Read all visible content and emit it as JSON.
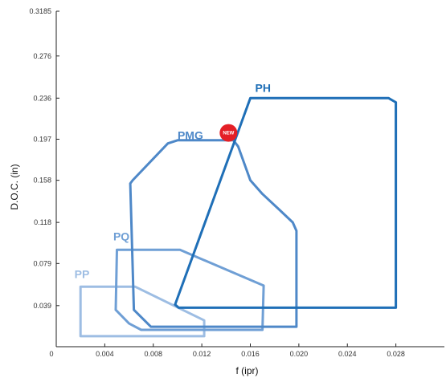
{
  "chart_data": {
    "type": "area",
    "xlabel": "f (ipr)",
    "ylabel": "D.O.C. (in)",
    "xlim": [
      0,
      0.032
    ],
    "ylim": [
      0,
      0.3185
    ],
    "x_ticks": [
      {
        "value": 0,
        "label": "0"
      },
      {
        "value": 0.004,
        "label": "0.004"
      },
      {
        "value": 0.008,
        "label": "0.008"
      },
      {
        "value": 0.012,
        "label": "0.012"
      },
      {
        "value": 0.016,
        "label": "0.016"
      },
      {
        "value": 0.02,
        "label": "0.020"
      },
      {
        "value": 0.024,
        "label": "0.024"
      },
      {
        "value": 0.028,
        "label": "0.028"
      }
    ],
    "y_ticks": [
      {
        "value": 0.039,
        "label": "0.039"
      },
      {
        "value": 0.079,
        "label": "0.079"
      },
      {
        "value": 0.118,
        "label": "0.118"
      },
      {
        "value": 0.158,
        "label": "0.158"
      },
      {
        "value": 0.197,
        "label": "0.197"
      },
      {
        "value": 0.236,
        "label": "0.236"
      },
      {
        "value": 0.276,
        "label": "0.276"
      },
      {
        "value": 0.3185,
        "label": "0.3185"
      }
    ],
    "grid": false,
    "series": [
      {
        "name": "PP",
        "color": "#9dbde3",
        "label_at": [
          0.0015,
          0.065
        ],
        "points": [
          [
            0.002,
            0.057
          ],
          [
            0.0065,
            0.057
          ],
          [
            0.0122,
            0.025
          ],
          [
            0.0122,
            0.01
          ],
          [
            0.002,
            0.01
          ]
        ]
      },
      {
        "name": "PQ",
        "color": "#6f9fd5",
        "label_at": [
          0.0047,
          0.101
        ],
        "points": [
          [
            0.005,
            0.092
          ],
          [
            0.0049,
            0.035
          ],
          [
            0.006,
            0.022
          ],
          [
            0.007,
            0.016
          ],
          [
            0.017,
            0.016
          ],
          [
            0.0171,
            0.058
          ],
          [
            0.0102,
            0.092
          ]
        ]
      },
      {
        "name": "PMG",
        "color": "#4e88c8",
        "badge": "NEW",
        "badge_color": "#e41f26",
        "label_at": [
          0.01,
          0.197
        ],
        "badge_at": [
          0.0142,
          0.203
        ],
        "points": [
          [
            0.0063,
            0.158
          ],
          [
            0.0092,
            0.193
          ],
          [
            0.01,
            0.196
          ],
          [
            0.0146,
            0.196
          ],
          [
            0.015,
            0.19
          ],
          [
            0.016,
            0.158
          ],
          [
            0.017,
            0.145
          ],
          [
            0.0184,
            0.13
          ],
          [
            0.0195,
            0.118
          ],
          [
            0.0198,
            0.11
          ],
          [
            0.0198,
            0.019
          ],
          [
            0.0078,
            0.019
          ],
          [
            0.0064,
            0.035
          ],
          [
            0.0061,
            0.155
          ]
        ]
      },
      {
        "name": "PH",
        "color": "#1f6fb7",
        "label_at": [
          0.0164,
          0.242
        ],
        "points": [
          [
            0.016,
            0.236
          ],
          [
            0.0274,
            0.236
          ],
          [
            0.028,
            0.232
          ],
          [
            0.028,
            0.037
          ],
          [
            0.0101,
            0.037
          ],
          [
            0.0098,
            0.04
          ]
        ]
      }
    ]
  }
}
